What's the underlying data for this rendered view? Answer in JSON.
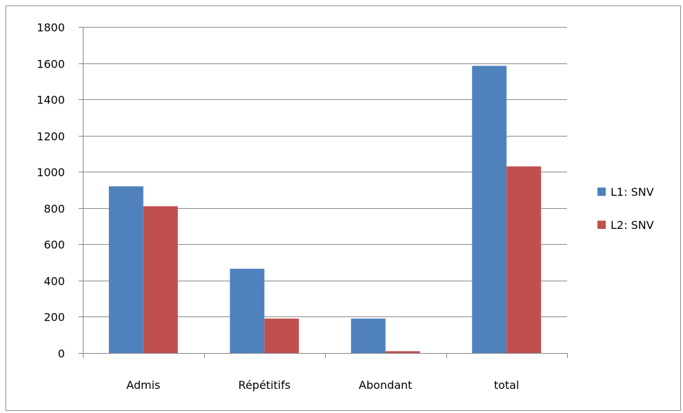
{
  "chart_data": {
    "type": "bar",
    "title": "",
    "xlabel": "",
    "ylabel": "",
    "categories": [
      "Admis",
      "Répétitifs",
      "Abondant",
      "total"
    ],
    "series": [
      {
        "name": "L1: SNV",
        "color": "#4f81bd",
        "values": [
          920,
          465,
          190,
          1585
        ]
      },
      {
        "name": "L2: SNV",
        "color": "#c0504d",
        "values": [
          810,
          190,
          10,
          1030
        ]
      }
    ],
    "ylim": [
      0,
      1800
    ],
    "yticks": [
      "0",
      "200",
      "400",
      "600",
      "800",
      "1000",
      "1200",
      "1400",
      "1600",
      "1800"
    ],
    "grid": true,
    "legend_position": "right"
  }
}
